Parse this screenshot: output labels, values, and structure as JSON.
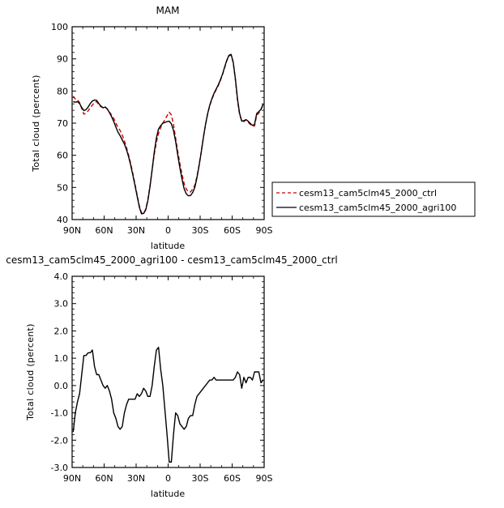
{
  "chart_data": [
    {
      "type": "line",
      "title": "MAM",
      "xlabel": "latitude",
      "ylabel": "Total cloud (percent)",
      "ylim": [
        40,
        100
      ],
      "yticks": [
        "40",
        "50",
        "60",
        "70",
        "80",
        "90",
        "100"
      ],
      "xlim": [
        90,
        -90
      ],
      "xticks": [
        "90N",
        "60N",
        "30N",
        "0",
        "30S",
        "60S",
        "90S"
      ],
      "legend_position": "right",
      "series": [
        {
          "name": "cesm13_cam5clm45_2000_ctrl",
          "color": "#cc0000",
          "style": "dashed",
          "x": [
            89,
            87,
            85,
            83,
            81,
            79,
            77,
            75,
            73,
            71,
            69,
            67,
            65,
            63,
            61,
            59,
            57,
            55,
            53,
            51,
            49,
            47,
            45,
            43,
            41,
            39,
            37,
            35,
            33,
            31,
            29,
            27,
            25,
            23,
            21,
            19,
            17,
            15,
            13,
            11,
            9,
            7,
            5,
            3,
            1,
            -1,
            -3,
            -5,
            -7,
            -9,
            -11,
            -13,
            -15,
            -17,
            -19,
            -21,
            -23,
            -25,
            -27,
            -29,
            -31,
            -33,
            -35,
            -37,
            -39,
            -41,
            -43,
            -45,
            -47,
            -49,
            -51,
            -53,
            -55,
            -57,
            -59,
            -61,
            -63,
            -65,
            -67,
            -69,
            -71,
            -73,
            -75,
            -77,
            -79,
            -81,
            -83,
            -85,
            -87,
            -89
          ],
          "values": [
            78.4,
            77.5,
            77.3,
            76.4,
            74.5,
            72.8,
            73.1,
            73.8,
            74.9,
            75.6,
            76.5,
            76.7,
            75.7,
            75.1,
            74.8,
            75.1,
            74.4,
            73.5,
            72.5,
            71.5,
            70.0,
            68.7,
            67.7,
            66.3,
            64.5,
            62.4,
            60.0,
            57.3,
            54.2,
            51.0,
            47.5,
            44.3,
            42.1,
            42.0,
            43.2,
            46.3,
            50.6,
            55.5,
            60.3,
            64.1,
            66.8,
            68.6,
            70.0,
            71.1,
            72.3,
            73.4,
            72.6,
            69.6,
            65.4,
            61.2,
            57.5,
            54.1,
            51.2,
            49.5,
            48.6,
            48.6,
            49.5,
            50.7,
            53.4,
            57.0,
            61.1,
            65.5,
            69.5,
            72.8,
            75.4,
            77.4,
            79.0,
            80.4,
            81.7,
            83.3,
            85.1,
            87.3,
            89.4,
            90.9,
            91.2,
            88.8,
            83.6,
            77.1,
            72.6,
            70.7,
            70.5,
            71.0,
            70.3,
            69.6,
            69.1,
            69.1,
            72.5,
            73.1,
            74.2,
            75.7
          ]
        },
        {
          "name": "cesm13_cam5clm45_2000_agri100",
          "color": "#000000",
          "style": "solid",
          "x": [
            89,
            87,
            85,
            83,
            81,
            79,
            77,
            75,
            73,
            71,
            69,
            67,
            65,
            63,
            61,
            59,
            57,
            55,
            53,
            51,
            49,
            47,
            45,
            43,
            41,
            39,
            37,
            35,
            33,
            31,
            29,
            27,
            25,
            23,
            21,
            19,
            17,
            15,
            13,
            11,
            9,
            7,
            5,
            3,
            1,
            -1,
            -3,
            -5,
            -7,
            -9,
            -11,
            -13,
            -15,
            -17,
            -19,
            -21,
            -23,
            -25,
            -27,
            -29,
            -31,
            -33,
            -35,
            -37,
            -39,
            -41,
            -43,
            -45,
            -47,
            -49,
            -51,
            -53,
            -55,
            -57,
            -59,
            -61,
            -63,
            -65,
            -67,
            -69,
            -71,
            -73,
            -75,
            -77,
            -79,
            -81,
            -83,
            -85,
            -87,
            -89
          ],
          "values": [
            76.7,
            76.5,
            76.7,
            76.1,
            74.9,
            73.9,
            74.2,
            75.0,
            76.1,
            76.9,
            77.2,
            77.1,
            76.1,
            75.3,
            74.8,
            75.0,
            74.4,
            73.3,
            72.0,
            70.5,
            68.8,
            67.2,
            66.1,
            64.8,
            63.5,
            61.7,
            59.5,
            56.8,
            53.7,
            50.5,
            47.2,
            43.9,
            41.8,
            41.9,
            43.0,
            45.9,
            50.2,
            55.5,
            61.0,
            65.4,
            68.2,
            69.2,
            70.0,
            70.2,
            70.5,
            70.6,
            69.8,
            67.8,
            64.4,
            60.1,
            56.1,
            52.6,
            49.6,
            48.0,
            47.4,
            47.5,
            48.4,
            50.0,
            53.0,
            56.7,
            60.9,
            65.4,
            69.5,
            72.9,
            75.6,
            77.6,
            79.3,
            80.6,
            81.9,
            83.5,
            85.3,
            87.5,
            89.6,
            91.1,
            91.4,
            89.0,
            83.9,
            77.6,
            73.0,
            70.6,
            70.8,
            71.1,
            70.6,
            69.9,
            69.3,
            69.6,
            73.0,
            73.6,
            74.3,
            75.9
          ]
        }
      ]
    },
    {
      "type": "line",
      "title": "cesm13_cam5clm45_2000_agri100 - cesm13_cam5clm45_2000_ctrl",
      "xlabel": "latitude",
      "ylabel": "Total cloud (percent)",
      "ylim": [
        -3,
        4
      ],
      "yticks": [
        "-3.0",
        "-2.0",
        "-1.0",
        "0.0",
        "1.0",
        "2.0",
        "3.0",
        "4.0"
      ],
      "xlim": [
        90,
        -90
      ],
      "xticks": [
        "90N",
        "60N",
        "30N",
        "0",
        "30S",
        "60S",
        "90S"
      ],
      "series": [
        {
          "name": "",
          "color": "#000000",
          "style": "solid",
          "x": [
            89,
            87,
            85,
            83,
            81,
            79,
            77,
            75,
            73,
            71,
            69,
            67,
            65,
            63,
            61,
            59,
            57,
            55,
            53,
            51,
            49,
            47,
            45,
            43,
            41,
            39,
            37,
            35,
            33,
            31,
            29,
            27,
            25,
            23,
            21,
            19,
            17,
            15,
            13,
            11,
            9,
            7,
            5,
            3,
            1,
            -1,
            -3,
            -5,
            -7,
            -9,
            -11,
            -13,
            -15,
            -17,
            -19,
            -21,
            -23,
            -25,
            -27,
            -29,
            -31,
            -33,
            -35,
            -37,
            -39,
            -41,
            -43,
            -45,
            -47,
            -49,
            -51,
            -53,
            -55,
            -57,
            -59,
            -61,
            -63,
            -65,
            -67,
            -69,
            -71,
            -73,
            -75,
            -77,
            -79,
            -81,
            -83,
            -85,
            -87,
            -89
          ],
          "values": [
            -1.7,
            -1.0,
            -0.6,
            -0.3,
            0.4,
            1.1,
            1.1,
            1.2,
            1.2,
            1.3,
            0.7,
            0.4,
            0.4,
            0.2,
            0.0,
            -0.1,
            0.0,
            -0.2,
            -0.5,
            -1.0,
            -1.2,
            -1.5,
            -1.6,
            -1.5,
            -1.0,
            -0.7,
            -0.5,
            -0.5,
            -0.5,
            -0.5,
            -0.3,
            -0.4,
            -0.3,
            -0.1,
            -0.2,
            -0.4,
            -0.4,
            0.0,
            0.7,
            1.3,
            1.4,
            0.6,
            0.0,
            -0.9,
            -1.8,
            -2.8,
            -2.8,
            -1.8,
            -1.0,
            -1.1,
            -1.4,
            -1.5,
            -1.6,
            -1.5,
            -1.2,
            -1.1,
            -1.1,
            -0.7,
            -0.4,
            -0.3,
            -0.2,
            -0.1,
            0.0,
            0.1,
            0.2,
            0.2,
            0.3,
            0.2,
            0.2,
            0.2,
            0.2,
            0.2,
            0.2,
            0.2,
            0.2,
            0.2,
            0.3,
            0.5,
            0.4,
            -0.1,
            0.3,
            0.1,
            0.3,
            0.3,
            0.2,
            0.5,
            0.5,
            0.5,
            0.1,
            0.2
          ]
        }
      ]
    }
  ]
}
